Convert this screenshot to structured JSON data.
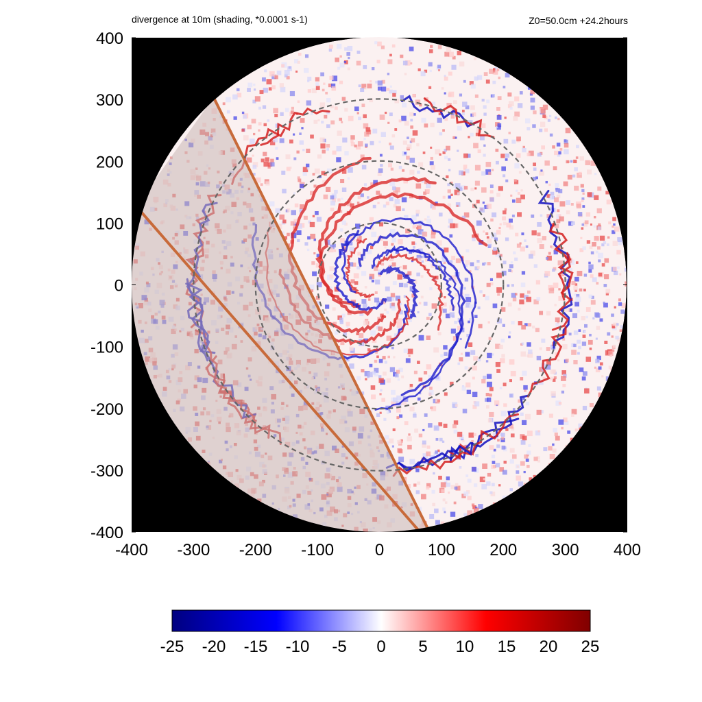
{
  "chart_data": {
    "type": "heatmap",
    "title": "divergence at 10m (shading, *0.0001 s-1)",
    "subtitle": "Z0=50.0cm  +24.2hours",
    "xlim": [
      -400,
      400
    ],
    "ylim": [
      -400,
      400
    ],
    "x_ticks": [
      "-400",
      "-300",
      "-200",
      "-100",
      "0",
      "100",
      "200",
      "300",
      "400"
    ],
    "y_ticks": [
      "400",
      "300",
      "200",
      "100",
      "0",
      "-100",
      "-200",
      "-300",
      "-400"
    ],
    "domain_radius": 400,
    "reference_circles_radius": [
      100,
      200,
      300
    ],
    "colorbar": {
      "range": [
        -25,
        25
      ],
      "ticks": [
        "-25",
        "-20",
        "-15",
        "-10",
        "-5",
        "0",
        "5",
        "10",
        "15",
        "20",
        "25"
      ],
      "colors": [
        "#000080",
        "#0000ff",
        "#ffffff",
        "#ff0000",
        "#800000"
      ]
    },
    "background_color": "#000000"
  }
}
